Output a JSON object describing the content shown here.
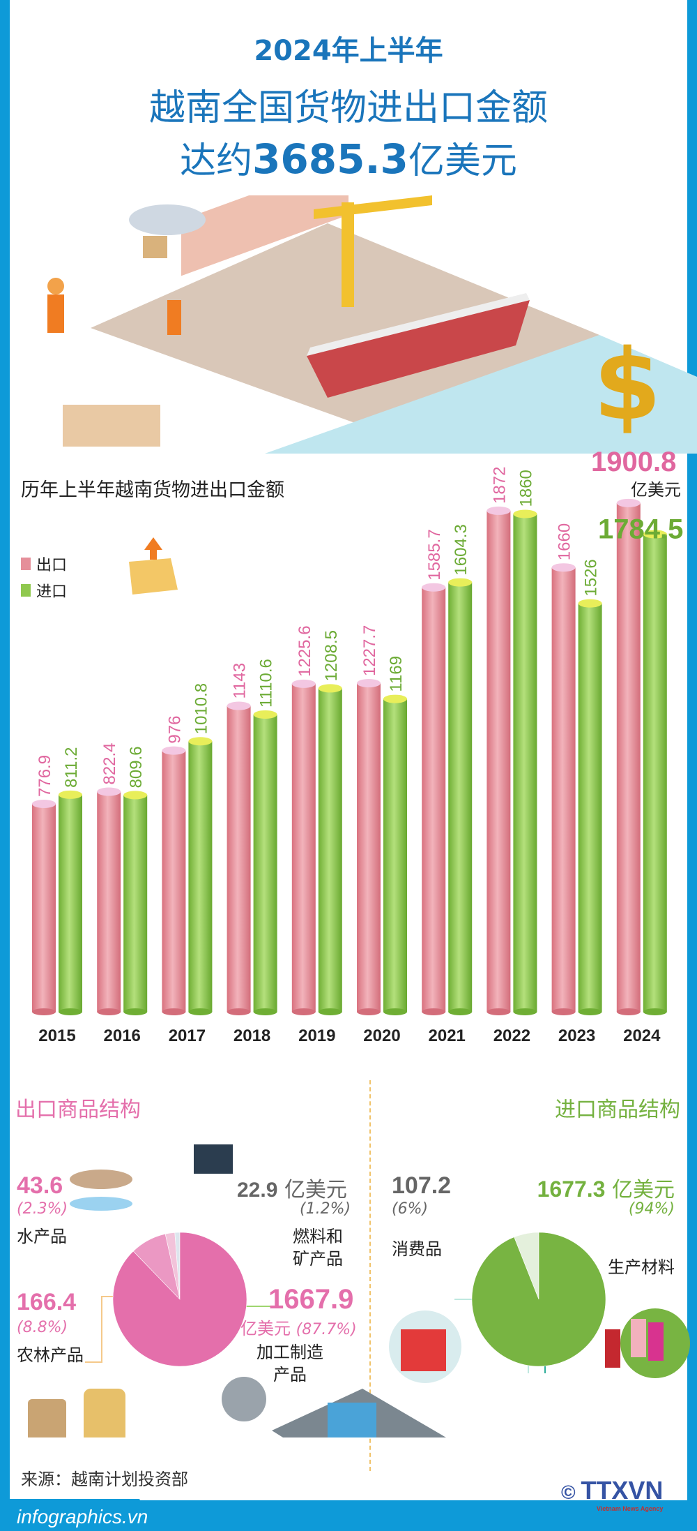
{
  "header": {
    "line1": "2024年上半年",
    "line2": "越南全国货物进出口金额",
    "line3_prefix": "达约",
    "line3_value": "3685.3",
    "line3_unit": "亿美元"
  },
  "colors": {
    "frame": "#0e9ad8",
    "title": "#1a75bb",
    "export": "#e46fab",
    "import": "#74b13f"
  },
  "chart_data": [
    {
      "type": "bar",
      "title": "历年上半年越南货物进出口金额",
      "categories": [
        "2015",
        "2016",
        "2017",
        "2018",
        "2019",
        "2020",
        "2021",
        "2022",
        "2023",
        "2024"
      ],
      "series": [
        {
          "name": "出口",
          "values": [
            776.9,
            822.4,
            976,
            1143,
            1225.6,
            1227.7,
            1585.7,
            1872,
            1660,
            1900.8
          ],
          "labels": [
            "776.9",
            "822.4",
            "976",
            "1143",
            "1225.6",
            "1227.7",
            "1585.7",
            "1872",
            "1660",
            "1900.8"
          ]
        },
        {
          "name": "进口",
          "values": [
            811.2,
            809.6,
            1010.8,
            1110.6,
            1208.5,
            1169,
            1604.3,
            1860,
            1526,
            1784.5
          ],
          "labels": [
            "811.2",
            "809.6",
            "1010.8",
            "1110.6",
            "1208.5",
            "1169",
            "1604.3",
            "1860",
            "1526",
            "1784.5"
          ]
        }
      ],
      "unit_label": "亿美元",
      "ylim": [
        0,
        1950
      ],
      "grid": false,
      "legend": "left"
    },
    {
      "type": "pie",
      "title": "出口商品结构",
      "slices": [
        {
          "name": "燃料和矿产品",
          "value": 22.9,
          "value_label": "22.9",
          "unit": "亿美元",
          "pct": "(1.2%)",
          "color": "#dde6ee"
        },
        {
          "name": "水产品",
          "value": 43.6,
          "value_label": "43.6",
          "pct": "(2.3%)",
          "color": "#f2c3da"
        },
        {
          "name": "农林产品",
          "value": 166.4,
          "value_label": "166.4",
          "pct": "(8.8%)",
          "color": "#eb98c3"
        },
        {
          "name": "加工制造产品",
          "name_line1": "加工制造",
          "name_line2": "产品",
          "value": 1667.9,
          "value_label": "1667.9",
          "unit": "亿美元",
          "pct": "(87.7%)",
          "color": "#e46fab"
        }
      ],
      "fuel_line1": "燃料和",
      "fuel_line2": "矿产品"
    },
    {
      "type": "pie",
      "title": "进口商品结构",
      "slices": [
        {
          "name": "消费品",
          "value": 107.2,
          "value_label": "107.2",
          "pct": "(6%)",
          "color": "#e4f0dc"
        },
        {
          "name": "生产材料",
          "value": 1677.3,
          "value_label": "1677.3",
          "unit": "亿美元",
          "pct": "(94%)",
          "color": "#78b442"
        }
      ]
    }
  ],
  "source": "来源：越南计划投资部",
  "footer": {
    "site": "infographics.vn",
    "copyright": "©",
    "agency": "TTXVN",
    "agency_sub": "Vietnam News Agency"
  }
}
